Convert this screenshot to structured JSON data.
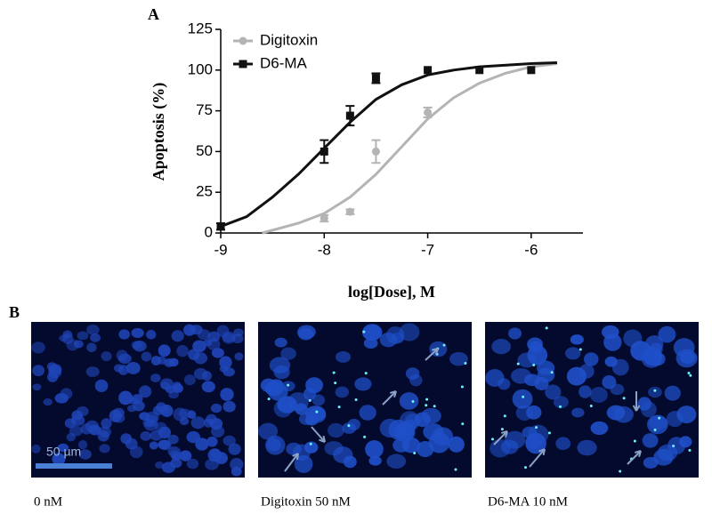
{
  "panel_labels": [
    "A",
    "B"
  ],
  "chart_data": {
    "type": "scatter",
    "ylabel": "Apoptosis (%)",
    "xlabel": "log[Dose], M",
    "xlim": [
      -9,
      -5.5
    ],
    "xticks": [
      -9,
      -8,
      -7,
      -6
    ],
    "ylim": [
      0,
      125
    ],
    "yticks": [
      0,
      25,
      50,
      75,
      100,
      125
    ],
    "legend": "upper left",
    "series": [
      {
        "name": "Digitoxin",
        "color": "#b4b4b4",
        "marker": "circle",
        "x": [
          -8,
          -7.75,
          -7.5,
          -7
        ],
        "values": [
          9,
          13,
          50,
          74
        ],
        "errors": [
          2,
          1.5,
          7,
          3
        ],
        "fit": {
          "x": [
            -8.6,
            -8.25,
            -8,
            -7.75,
            -7.5,
            -7.25,
            -7,
            -6.75,
            -6.5,
            -6.25,
            -6,
            -5.75
          ],
          "values": [
            0,
            6,
            12,
            22,
            36,
            53,
            70,
            83,
            92,
            98,
            102,
            104
          ]
        }
      },
      {
        "name": "D6-MA",
        "color": "#111111",
        "marker": "square",
        "x": [
          -9,
          -8,
          -7.75,
          -7.5,
          -7,
          -6.5,
          -6
        ],
        "values": [
          4,
          50,
          72,
          95,
          100,
          100,
          100
        ],
        "errors": [
          2,
          7,
          6,
          3,
          null,
          null,
          null
        ],
        "fit": {
          "x": [
            -9,
            -8.75,
            -8.5,
            -8.25,
            -8,
            -7.75,
            -7.5,
            -7.25,
            -7,
            -6.75,
            -6.5,
            -6,
            -5.75
          ],
          "values": [
            4,
            10,
            22,
            36,
            52,
            68,
            82,
            91,
            97,
            100,
            102,
            104,
            104.5
          ]
        }
      }
    ]
  },
  "images": {
    "captions": [
      "0 nM",
      "Digitoxin 50 nM",
      "D6-MA 10 nM"
    ],
    "scale_bar": "50 µm"
  }
}
